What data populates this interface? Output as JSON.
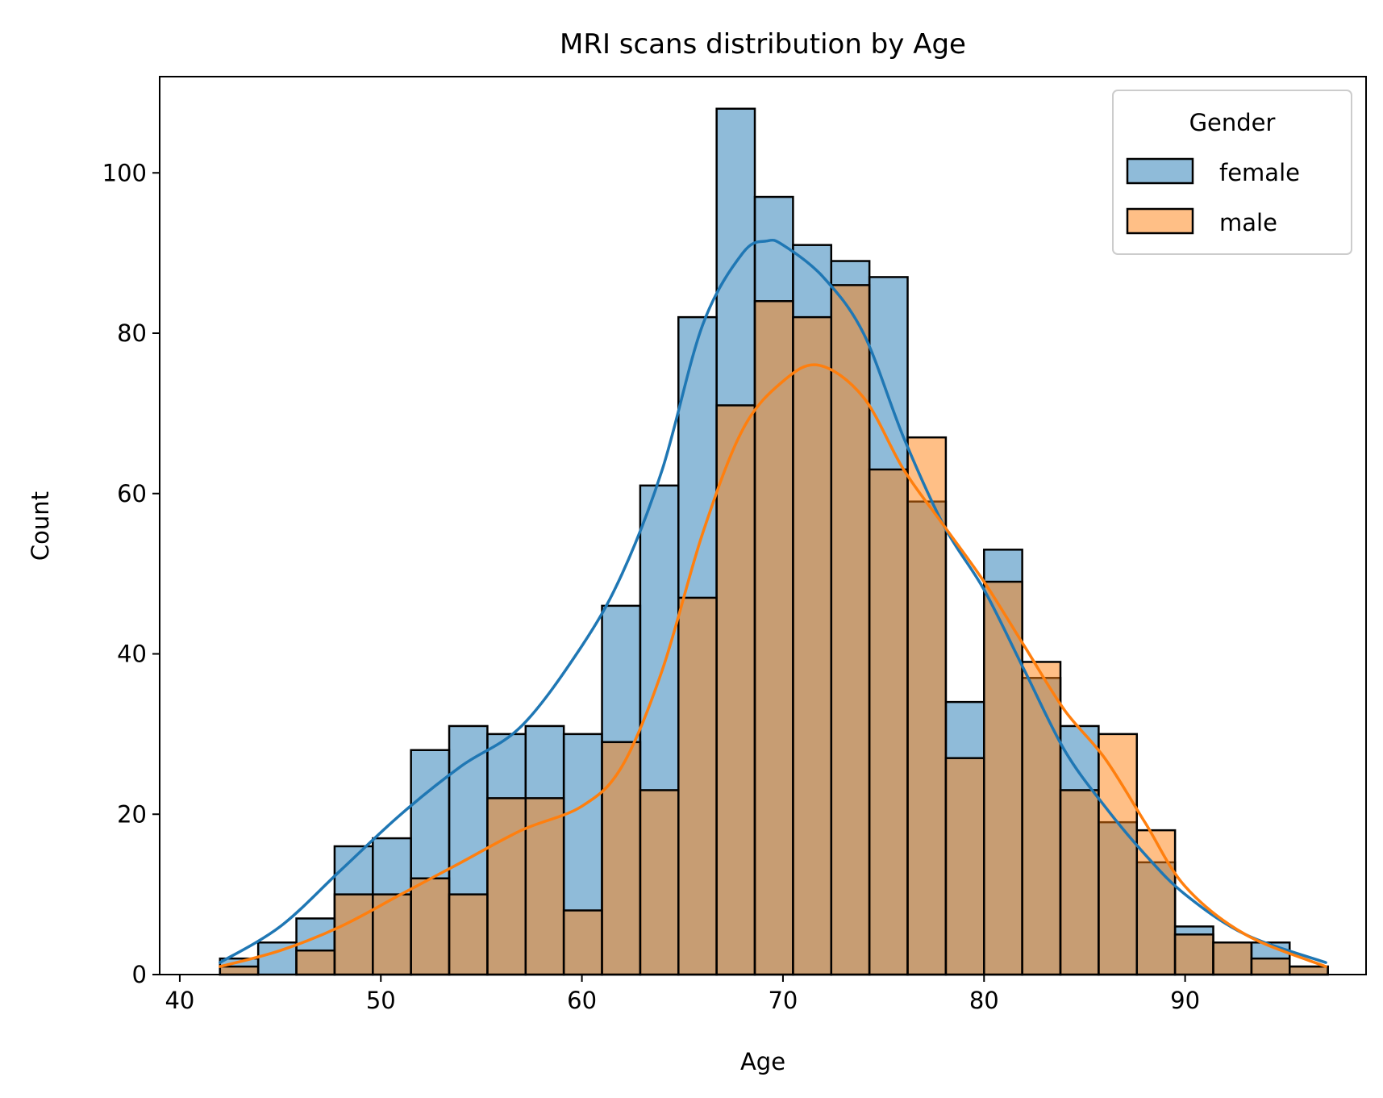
{
  "chart_data": {
    "type": "bar",
    "subtype": "overlaid histogram with KDE curves",
    "title": "MRI scans distribution by Age",
    "xlabel": "Age",
    "ylabel": "Count",
    "xlim": [
      39,
      99
    ],
    "ylim": [
      0,
      112
    ],
    "xticks": [
      40,
      50,
      60,
      70,
      80,
      90
    ],
    "yticks": [
      0,
      20,
      40,
      60,
      80,
      100
    ],
    "grid": false,
    "legend": {
      "title": "Gender",
      "placement": "top-right"
    },
    "bin_start": 42,
    "bin_width": 1.9,
    "bins": [
      42,
      43.9,
      45.8,
      47.7,
      49.6,
      51.5,
      53.4,
      55.3,
      57.2,
      59.1,
      61.0,
      62.9,
      64.8,
      66.7,
      68.6,
      70.5,
      72.4,
      74.3,
      76.2,
      78.1,
      80.0,
      81.9,
      83.8,
      85.7,
      87.6,
      89.5,
      91.4,
      93.3,
      95.2,
      97.1
    ],
    "series": [
      {
        "name": "female",
        "color": "#1f77b4",
        "counts": [
          2,
          4,
          7,
          16,
          17,
          28,
          31,
          30,
          31,
          30,
          46,
          61,
          82,
          108,
          97,
          91,
          89,
          87,
          59,
          34,
          53,
          37,
          31,
          19,
          14,
          6,
          4,
          4,
          1
        ],
        "kde": {
          "x": [
            42,
            45,
            48,
            51,
            54,
            57,
            60,
            62,
            64,
            66,
            68,
            69.2,
            70,
            72,
            74,
            76,
            78,
            80,
            82,
            84,
            86,
            88,
            90,
            93,
            97
          ],
          "y": [
            1.5,
            6,
            13,
            20,
            26,
            31,
            41,
            50,
            63,
            81,
            90,
            91.5,
            91,
            87,
            80,
            67,
            56,
            48,
            38,
            28,
            21,
            15,
            10,
            5,
            1.5
          ]
        }
      },
      {
        "name": "male",
        "color": "#ff7f0e",
        "counts": [
          1,
          0,
          3,
          10,
          10,
          12,
          10,
          22,
          22,
          8,
          29,
          23,
          47,
          71,
          84,
          82,
          86,
          63,
          67,
          27,
          49,
          39,
          23,
          30,
          18,
          5,
          4,
          2,
          1
        ],
        "kde": {
          "x": [
            42,
            45,
            48,
            51,
            54,
            57,
            60,
            62,
            64,
            66,
            68,
            70,
            71.8,
            74,
            76,
            78,
            80,
            82,
            84,
            86,
            88,
            90,
            93,
            97
          ],
          "y": [
            1,
            3,
            6,
            10,
            14,
            18,
            21,
            26,
            38,
            55,
            68,
            74,
            76,
            72,
            63,
            56,
            49,
            41,
            33,
            27,
            19,
            11,
            5,
            1
          ]
        }
      }
    ]
  }
}
